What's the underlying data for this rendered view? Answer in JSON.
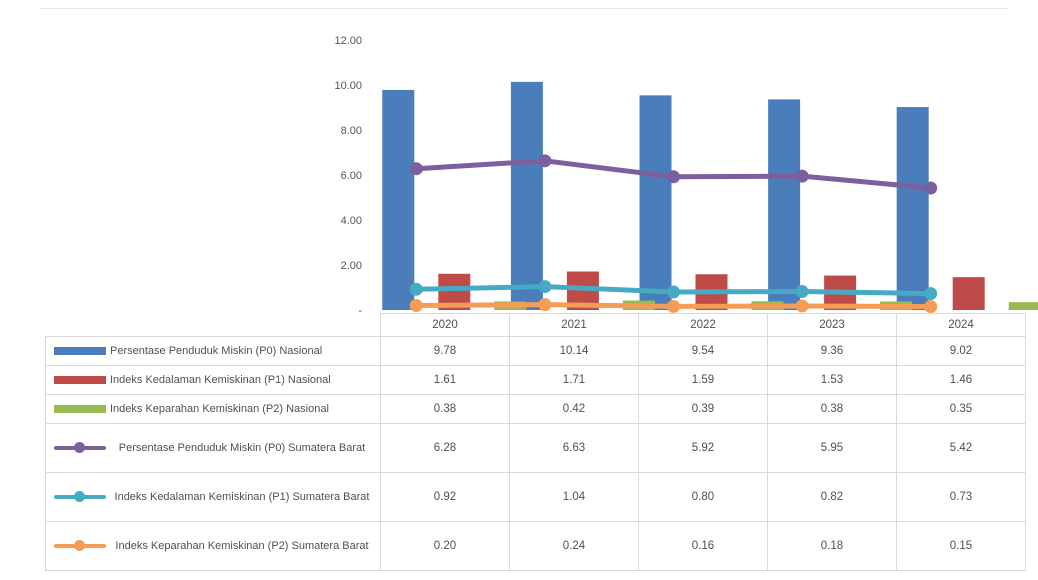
{
  "chart_data": {
    "type": "bar",
    "title": "",
    "categories": [
      "2020",
      "2021",
      "2022",
      "2023",
      "2024"
    ],
    "ylim": [
      0,
      12
    ],
    "y_ticks": [
      "-",
      "2.00",
      "4.00",
      "6.00",
      "8.00",
      "10.00",
      "12.00"
    ],
    "grid": false,
    "legend_placement": "data table below chart",
    "series": [
      {
        "name": "Persentase Penduduk Miskin (P0) Nasional",
        "kind": "bar",
        "color": "#4a7ebb",
        "values": [
          9.78,
          10.14,
          9.54,
          9.36,
          9.02
        ],
        "labels": [
          "9.78",
          "10.14",
          "9.54",
          "9.36",
          "9.02"
        ]
      },
      {
        "name": "Indeks Kedalaman Kemiskinan (P1) Nasional",
        "kind": "bar",
        "color": "#be4b48",
        "values": [
          1.61,
          1.71,
          1.59,
          1.53,
          1.46
        ],
        "labels": [
          "1.61",
          "1.71",
          "1.59",
          "1.53",
          "1.46"
        ]
      },
      {
        "name": "Indeks Keparahan Kemiskinan (P2) Nasional",
        "kind": "bar",
        "color": "#98b954",
        "values": [
          0.38,
          0.42,
          0.39,
          0.38,
          0.35
        ],
        "labels": [
          "0.38",
          "0.42",
          "0.39",
          "0.38",
          "0.35"
        ]
      },
      {
        "name": "Persentase Penduduk Miskin (P0) Sumatera Barat",
        "kind": "line",
        "color": "#7d5fa0",
        "values": [
          6.28,
          6.63,
          5.92,
          5.95,
          5.42
        ],
        "labels": [
          "6.28",
          "6.63",
          "5.92",
          "5.95",
          "5.42"
        ]
      },
      {
        "name": "Indeks Kedalaman Kemiskinan (P1) Sumatera Barat",
        "kind": "line",
        "color": "#46aac5",
        "values": [
          0.92,
          1.04,
          0.8,
          0.82,
          0.73
        ],
        "labels": [
          "0.92",
          "1.04",
          "0.80",
          "0.82",
          "0.73"
        ]
      },
      {
        "name": "Indeks Keparahan Kemiskinan (P2) Sumatera Barat",
        "kind": "line",
        "color": "#f59d56",
        "values": [
          0.2,
          0.24,
          0.16,
          0.18,
          0.15
        ],
        "labels": [
          "0.20",
          "0.24",
          "0.16",
          "0.18",
          "0.15"
        ]
      }
    ]
  }
}
